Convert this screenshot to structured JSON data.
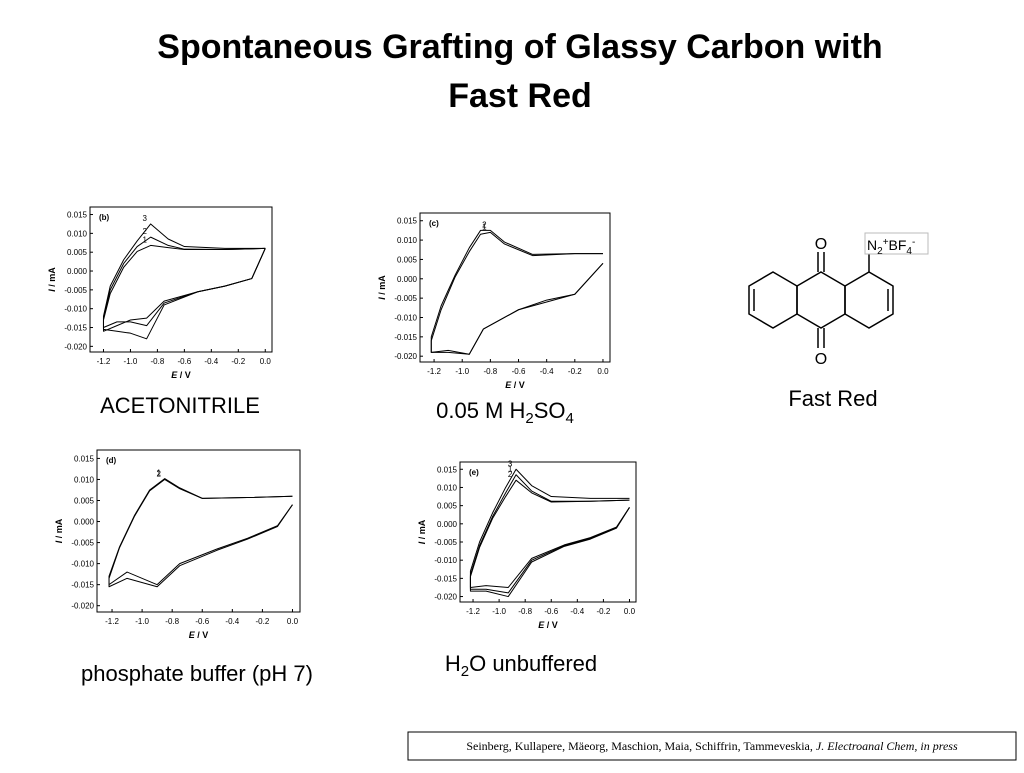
{
  "title": [
    "Spontaneous Grafting of Glassy Carbon with",
    "Fast Red"
  ],
  "chart_data": [
    {
      "type": "line",
      "label": "(b)",
      "xlabel": [
        "E",
        " / V"
      ],
      "ylabel": [
        "I",
        " / mA"
      ],
      "color": "#000000",
      "xlim": [
        -1.3,
        0.05
      ],
      "ylim": [
        -0.0215,
        0.017
      ],
      "xticks": [
        -1.2,
        {
          "value": -1,
          "label": "-1.0"
        },
        -0.8,
        -0.6,
        -0.4,
        -0.2,
        {
          "value": 0,
          "label": "0.0"
        }
      ],
      "yticks": [
        0.015,
        {
          "value": 0.01,
          "label": "0.010"
        },
        0.005,
        {
          "value": 0,
          "label": "0.000"
        },
        -0.005,
        {
          "value": -0.01,
          "label": "-0.010"
        },
        -0.015,
        {
          "value": -0.02,
          "label": "-0.020"
        }
      ],
      "series": [
        {
          "name": "1",
          "x": [
            0,
            -0.3,
            -0.6,
            -0.72,
            -0.85,
            -0.95,
            -1.05,
            -1.15,
            -1.2,
            -1.2,
            -1.1,
            -1.0,
            -0.88,
            -0.75,
            -0.5,
            -0.3,
            -0.1,
            0
          ],
          "values": [
            0.006,
            0.0057,
            0.0057,
            0.0062,
            0.0068,
            0.0052,
            0.001,
            -0.006,
            -0.013,
            -0.016,
            -0.0145,
            -0.013,
            -0.0125,
            -0.008,
            -0.0055,
            -0.004,
            -0.002,
            0.006
          ]
        },
        {
          "name": "2",
          "x": [
            0,
            -0.3,
            -0.6,
            -0.72,
            -0.85,
            -0.95,
            -1.05,
            -1.15,
            -1.2,
            -1.2,
            -1.1,
            -1.0,
            -0.88,
            -0.75,
            -0.5,
            -0.3,
            -0.1,
            0
          ],
          "values": [
            0.006,
            0.0057,
            0.0058,
            0.0068,
            0.009,
            0.0065,
            0.002,
            -0.005,
            -0.0125,
            -0.015,
            -0.0135,
            -0.0135,
            -0.0145,
            -0.0085,
            -0.0055,
            -0.004,
            -0.002,
            0.006
          ]
        },
        {
          "name": "3",
          "x": [
            0,
            -0.3,
            -0.6,
            -0.72,
            -0.85,
            -0.95,
            -1.05,
            -1.15,
            -1.2,
            -1.2,
            -1.1,
            -1.0,
            -0.88,
            -0.75,
            -0.5,
            -0.3,
            -0.1,
            0
          ],
          "values": [
            0.006,
            0.006,
            0.0065,
            0.0085,
            0.0125,
            0.008,
            0.003,
            -0.004,
            -0.012,
            -0.0155,
            -0.016,
            -0.0165,
            -0.018,
            -0.009,
            -0.0055,
            -0.004,
            -0.002,
            0.006
          ]
        }
      ]
    },
    {
      "type": "line",
      "label": "(c)",
      "xlabel": [
        "E",
        " / V"
      ],
      "ylabel": [
        "I",
        " / mA"
      ],
      "color": "#000000",
      "xlim": [
        -1.3,
        0.05
      ],
      "ylim": [
        -0.0215,
        0.017
      ],
      "xticks": [
        -1.2,
        {
          "value": -1,
          "label": "-1.0"
        },
        -0.8,
        -0.6,
        -0.4,
        -0.2,
        {
          "value": 0,
          "label": "0.0"
        }
      ],
      "yticks": [
        0.015,
        {
          "value": 0.01,
          "label": "0.010"
        },
        0.005,
        {
          "value": 0,
          "label": "0.000"
        },
        -0.005,
        {
          "value": -0.01,
          "label": "-0.010"
        },
        -0.015,
        {
          "value": -0.02,
          "label": "-0.020"
        }
      ],
      "series": [
        {
          "name": "1",
          "x": [
            0,
            -0.2,
            -0.5,
            -0.7,
            -0.8,
            -0.87,
            -0.95,
            -1.05,
            -1.15,
            -1.22,
            -1.22,
            -1.1,
            -0.95,
            -0.85,
            -0.6,
            -0.4,
            -0.2,
            0
          ],
          "values": [
            0.0065,
            0.0065,
            0.006,
            0.009,
            0.012,
            0.0115,
            0.007,
            0.0005,
            -0.008,
            -0.016,
            -0.019,
            -0.019,
            -0.0195,
            -0.013,
            -0.008,
            -0.006,
            -0.004,
            0.004
          ]
        },
        {
          "name": "2",
          "x": [
            0,
            -0.2,
            -0.5,
            -0.7,
            -0.8,
            -0.87,
            -0.95,
            -1.05,
            -1.15,
            -1.22,
            -1.22,
            -1.1,
            -0.95,
            -0.85,
            -0.6,
            -0.4,
            -0.2,
            0
          ],
          "values": [
            0.0065,
            0.0065,
            0.0063,
            0.0095,
            0.0125,
            0.0125,
            0.008,
            0.001,
            -0.007,
            -0.015,
            -0.019,
            -0.0185,
            -0.0195,
            -0.013,
            -0.008,
            -0.0055,
            -0.004,
            0.004
          ]
        }
      ]
    },
    {
      "type": "line",
      "label": "(d)",
      "xlabel": [
        "E",
        " / V"
      ],
      "ylabel": [
        "I",
        " / mA"
      ],
      "color": "#000000",
      "xlim": [
        -1.3,
        0.05
      ],
      "ylim": [
        -0.0215,
        0.017
      ],
      "xticks": [
        -1.2,
        {
          "value": -1,
          "label": "-1.0"
        },
        -0.8,
        -0.6,
        -0.4,
        -0.2,
        {
          "value": 0,
          "label": "0.0"
        }
      ],
      "yticks": [
        0.015,
        {
          "value": 0.01,
          "label": "0.010"
        },
        0.005,
        {
          "value": 0,
          "label": "0.000"
        },
        -0.005,
        {
          "value": -0.01,
          "label": "-0.010"
        },
        -0.015,
        {
          "value": -0.02,
          "label": "-0.020"
        }
      ],
      "series": [
        {
          "name": "1",
          "x": [
            0,
            -0.3,
            -0.6,
            -0.75,
            -0.85,
            -0.95,
            -1.05,
            -1.15,
            -1.22,
            -1.22,
            -1.1,
            -0.9,
            -0.75,
            -0.5,
            -0.3,
            -0.1,
            0
          ],
          "values": [
            0.006,
            0.0057,
            0.0055,
            0.008,
            0.0102,
            0.0075,
            0.0015,
            -0.006,
            -0.013,
            -0.015,
            -0.012,
            -0.015,
            -0.01,
            -0.0065,
            -0.004,
            -0.001,
            0.004
          ]
        },
        {
          "name": "2",
          "x": [
            0,
            -0.3,
            -0.6,
            -0.75,
            -0.85,
            -0.95,
            -1.05,
            -1.15,
            -1.22,
            -1.22,
            -1.1,
            -0.9,
            -0.75,
            -0.5,
            -0.3,
            -0.1,
            0
          ],
          "values": [
            0.006,
            0.0057,
            0.0055,
            0.0078,
            0.01,
            0.0073,
            0.0013,
            -0.0062,
            -0.0135,
            -0.0155,
            -0.0135,
            -0.0155,
            -0.0105,
            -0.0068,
            -0.0042,
            -0.0012,
            0.004
          ]
        }
      ]
    },
    {
      "type": "line",
      "label": "(e)",
      "xlabel": [
        "E",
        " / V"
      ],
      "ylabel": [
        "I",
        " / mA"
      ],
      "color": "#000000",
      "xlim": [
        -1.3,
        0.05
      ],
      "ylim": [
        -0.0215,
        0.017
      ],
      "xticks": [
        -1.2,
        {
          "value": -1,
          "label": "-1.0"
        },
        -0.8,
        -0.6,
        -0.4,
        -0.2,
        {
          "value": 0,
          "label": "0.0"
        }
      ],
      "yticks": [
        0.015,
        {
          "value": 0.01,
          "label": "0.010"
        },
        0.005,
        {
          "value": 0,
          "label": "0.000"
        },
        -0.005,
        {
          "value": -0.01,
          "label": "-0.010"
        },
        -0.015,
        {
          "value": -0.02,
          "label": "-0.020"
        }
      ],
      "series": [
        {
          "name": "1",
          "x": [
            0,
            -0.3,
            -0.6,
            -0.75,
            -0.87,
            -0.95,
            -1.05,
            -1.15,
            -1.22,
            -1.22,
            -1.1,
            -0.93,
            -0.75,
            -0.5,
            -0.3,
            -0.1,
            0
          ],
          "values": [
            0.0065,
            0.0062,
            0.0062,
            0.009,
            0.0135,
            0.0085,
            0.002,
            -0.006,
            -0.014,
            -0.018,
            -0.018,
            -0.019,
            -0.01,
            -0.006,
            -0.004,
            -0.001,
            0.0045
          ]
        },
        {
          "name": "2",
          "x": [
            0,
            -0.3,
            -0.6,
            -0.75,
            -0.87,
            -0.95,
            -1.05,
            -1.15,
            -1.22,
            -1.22,
            -1.1,
            -0.93,
            -0.75,
            -0.5,
            -0.3,
            -0.1,
            0
          ],
          "values": [
            0.0065,
            0.0062,
            0.006,
            0.0085,
            0.012,
            0.0075,
            0.0015,
            -0.0065,
            -0.0145,
            -0.0185,
            -0.0185,
            -0.02,
            -0.0105,
            -0.0062,
            -0.0042,
            -0.0012,
            0.0045
          ]
        },
        {
          "name": "3",
          "x": [
            0,
            -0.3,
            -0.6,
            -0.75,
            -0.87,
            -0.95,
            -1.05,
            -1.15,
            -1.22,
            -1.22,
            -1.1,
            -0.93,
            -0.75,
            -0.5,
            -0.3,
            -0.1,
            0
          ],
          "values": [
            0.007,
            0.007,
            0.0075,
            0.0105,
            0.015,
            0.01,
            0.003,
            -0.005,
            -0.013,
            -0.0175,
            -0.017,
            -0.0175,
            -0.0095,
            -0.0058,
            -0.0038,
            -0.0009,
            0.0045
          ]
        }
      ]
    }
  ],
  "captions": {
    "acetonitrile": "ACETONITRILE",
    "sulfuric": [
      "0.05 M H",
      "2",
      "SO",
      "4"
    ],
    "fast_red": "Fast Red",
    "phosphate": "phosphate buffer (pH 7)",
    "water": [
      "H",
      "2",
      "O unbuffered"
    ]
  },
  "structure": {
    "oxygen_top": "O",
    "oxygen_bottom": "O",
    "substituent": [
      "N",
      "2",
      "+",
      "BF",
      "4",
      "-"
    ]
  },
  "citation": [
    "Seinberg, Kullapere, Mäeorg, Maschion, Maia, Schiffrin, Tammeveskia, ",
    "J. Electroanal Chem, in press"
  ]
}
